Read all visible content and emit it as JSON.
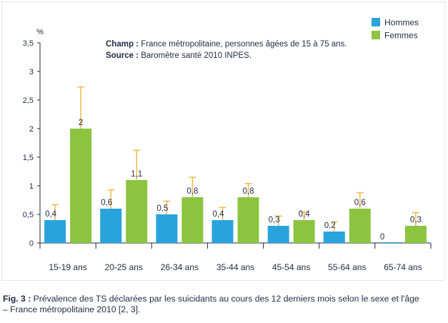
{
  "chart_data": {
    "type": "bar",
    "ylabel": "%",
    "ylim": [
      0,
      3.5
    ],
    "yticks": [
      "0",
      "0,5",
      "1",
      "1,5",
      "2",
      "2,5",
      "3",
      "3,5"
    ],
    "categories": [
      "15-19 ans",
      "20-25 ans",
      "26-34 ans",
      "35-44 ans",
      "45-54 ans",
      "55-64 ans",
      "65-74 ans"
    ],
    "series": [
      {
        "name": "Hommes",
        "color": "#29a3dc",
        "values": [
          0.4,
          0.6,
          0.5,
          0.4,
          0.3,
          0.2,
          0.0
        ],
        "labels": [
          "0,4",
          "0,6",
          "0,5",
          "0,4",
          "0,3",
          "0,2",
          "0"
        ],
        "error_low": [
          0.12,
          0.27,
          0.25,
          0.17,
          0.1,
          0.04,
          null
        ],
        "error_high": [
          0.67,
          0.93,
          0.73,
          0.62,
          0.47,
          0.37,
          null
        ]
      },
      {
        "name": "Femmes",
        "color": "#8cc43f",
        "values": [
          2.0,
          1.1,
          0.8,
          0.8,
          0.4,
          0.6,
          0.3
        ],
        "labels": [
          "2",
          "1,1",
          "0,8",
          "0,8",
          "0,4",
          "0,6",
          "0,3"
        ],
        "error_low": [
          1.28,
          0.58,
          0.45,
          0.56,
          0.2,
          0.33,
          0.08
        ],
        "error_high": [
          2.73,
          1.62,
          1.15,
          1.04,
          0.54,
          0.88,
          0.53
        ]
      }
    ],
    "error_bar_color": "#f2b84b",
    "grid": false,
    "legend_position": "top-right"
  },
  "annotation": {
    "champ_label": "Champ :",
    "champ_text": " France métropolitaine, personnes âgées de 15 à 75 ans.",
    "source_label": "Source :",
    "source_text": " Baromètre santé 2010 INPES."
  },
  "caption": {
    "fig_label": "Fig. 3 :",
    "line1": " Prévalence des TS déclarées par les suicidants au cours des 12 derniers mois selon le sexe et l'âge",
    "line2": "– France métropolitaine 2010 [2, 3]."
  }
}
